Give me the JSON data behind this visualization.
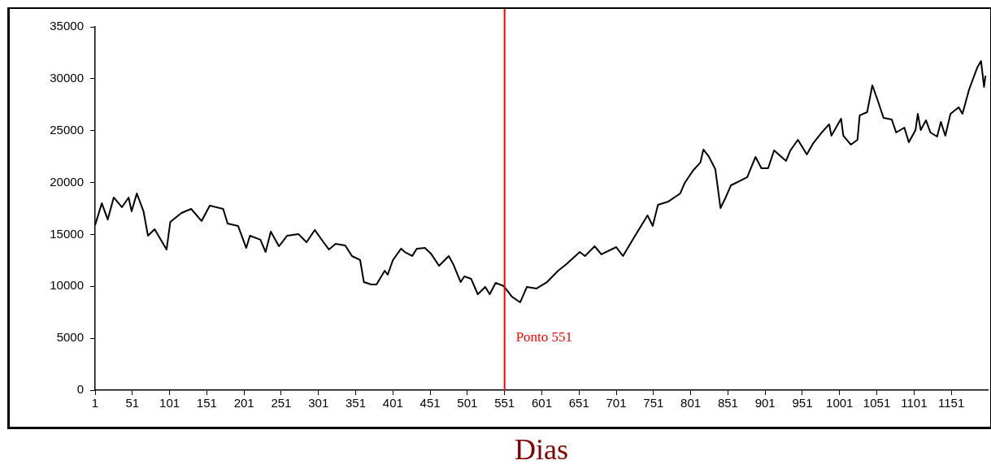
{
  "chart_data": {
    "type": "line",
    "xlabel": "Dias",
    "x": [
      1,
      10,
      18,
      26,
      37,
      46,
      50,
      57,
      66,
      72,
      81,
      88,
      97,
      102,
      117,
      130,
      144,
      155,
      173,
      179,
      193,
      204,
      209,
      223,
      230,
      237,
      248,
      259,
      274,
      285,
      296,
      307,
      315,
      324,
      337,
      346,
      357,
      362,
      372,
      379,
      390,
      394,
      401,
      412,
      417,
      427,
      433,
      444,
      452,
      463,
      476,
      482,
      492,
      497,
      506,
      515,
      525,
      531,
      539,
      550,
      561,
      572,
      581,
      594,
      608,
      623,
      634,
      652,
      659,
      672,
      681,
      701,
      710,
      725,
      743,
      750,
      757,
      771,
      787,
      793,
      804,
      814,
      818,
      825,
      834,
      837,
      841,
      848,
      855,
      866,
      877,
      888,
      896,
      905,
      913,
      929,
      935,
      945,
      957,
      965,
      978,
      987,
      990,
      1003,
      1006,
      1016,
      1025,
      1028,
      1038,
      1045,
      1052,
      1060,
      1071,
      1077,
      1088,
      1094,
      1103,
      1106,
      1110,
      1117,
      1123,
      1132,
      1137,
      1143,
      1150,
      1161,
      1166,
      1175,
      1186,
      1191,
      1195,
      1197
    ],
    "series": [
      {
        "color": "#000000",
        "values": [
          15900,
          18000,
          16440,
          18560,
          17620,
          18560,
          17230,
          18950,
          17230,
          14880,
          15500,
          14640,
          13550,
          16210,
          17070,
          17460,
          16290,
          17780,
          17460,
          16050,
          15820,
          13700,
          14880,
          14490,
          13310,
          15270,
          13860,
          14880,
          15040,
          14250,
          15430,
          14330,
          13550,
          14100,
          13940,
          12920,
          12530,
          10410,
          10180,
          10180,
          11510,
          11120,
          12530,
          13630,
          13310,
          12920,
          13630,
          13700,
          13160,
          11980,
          12920,
          12140,
          10410,
          10960,
          10730,
          9240,
          9950,
          9240,
          10340,
          10020,
          9000,
          8460,
          9950,
          9790,
          10410,
          11510,
          12140,
          13310,
          12920,
          13860,
          13080,
          13780,
          12920,
          14720,
          16840,
          15820,
          17850,
          18170,
          18950,
          19970,
          21140,
          21930,
          23180,
          22550,
          21300,
          19730,
          17540,
          18560,
          19730,
          20120,
          20520,
          22470,
          21380,
          21380,
          23100,
          22080,
          23100,
          24120,
          22710,
          23730,
          24900,
          25610,
          24510,
          26150,
          24510,
          23650,
          24120,
          26470,
          26780,
          29360,
          27950,
          26230,
          26080,
          24820,
          25290,
          23880,
          25060,
          26620,
          25060,
          26000,
          24820,
          24430,
          25840,
          24510,
          26620,
          27250,
          26620,
          28970,
          31090,
          31710,
          29210,
          30300
        ]
      }
    ],
    "xlim": [
      1,
      1200
    ],
    "xticks": [
      1,
      51,
      101,
      151,
      201,
      251,
      301,
      351,
      401,
      451,
      501,
      551,
      601,
      651,
      701,
      751,
      801,
      851,
      901,
      951,
      1001,
      1051,
      1101,
      1151
    ],
    "ylim": [
      0,
      35000
    ],
    "yticks": [
      0,
      5000,
      10000,
      15000,
      20000,
      25000,
      30000,
      35000
    ],
    "ref_lines": [
      {
        "axis": "x",
        "value": 551,
        "label": "Ponto 551",
        "color": "#ff0000"
      }
    ],
    "grid": false,
    "legend": false,
    "marker": "none",
    "line_style": "solid"
  }
}
